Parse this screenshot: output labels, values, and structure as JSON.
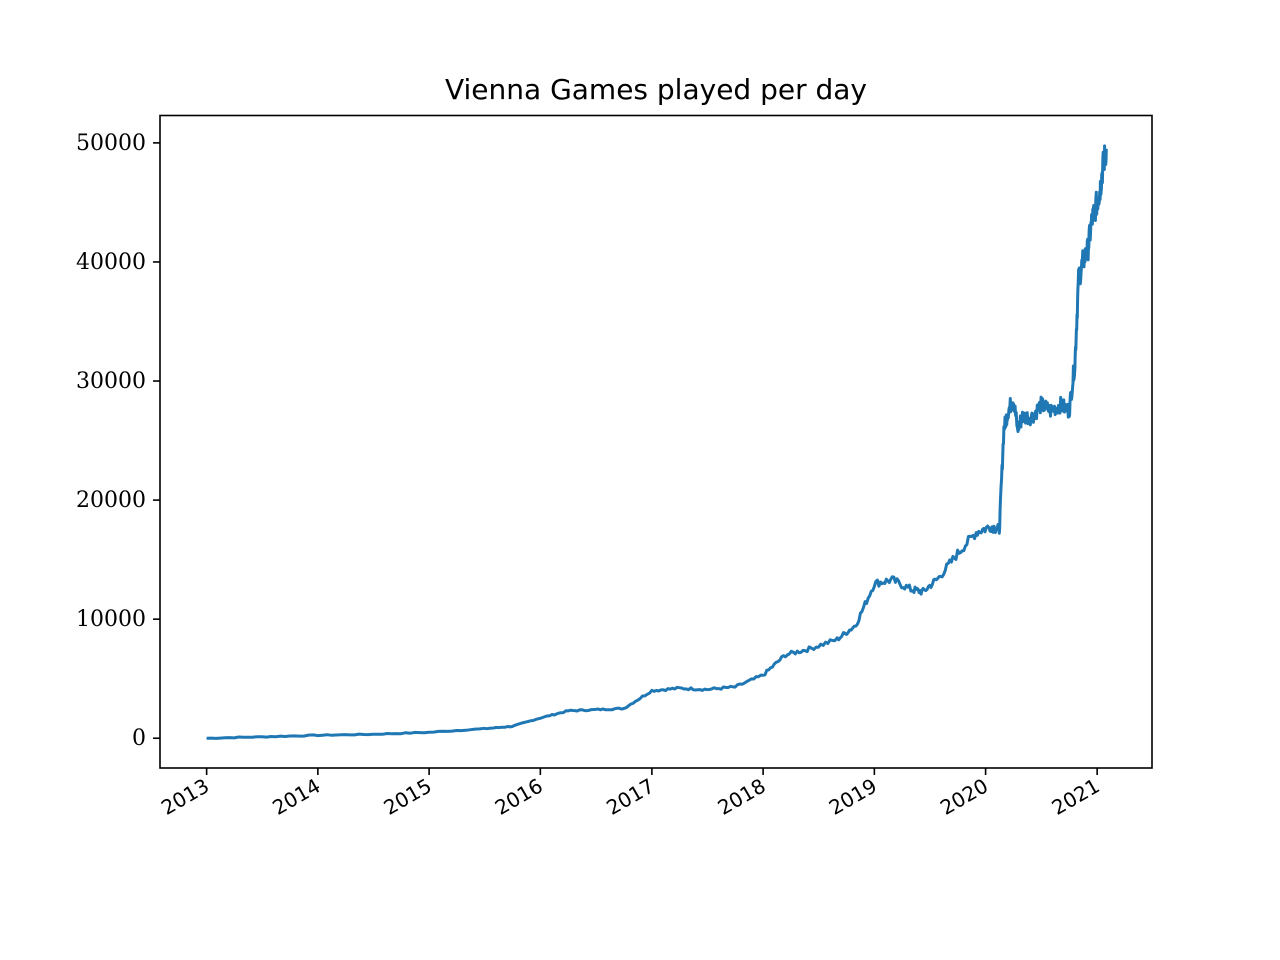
{
  "chart_data": {
    "type": "line",
    "title": "Vienna Games played per day",
    "xlabel": "",
    "ylabel": "",
    "xlim": [
      "2012-08-01",
      "2021-06-30"
    ],
    "ylim": [
      -2500,
      52300
    ],
    "grid": false,
    "legend": "none",
    "color": "#1f77b4",
    "x_ticks": [
      "2013-01-01",
      "2014-01-01",
      "2015-01-01",
      "2016-01-01",
      "2017-01-01",
      "2018-01-01",
      "2019-01-01",
      "2020-01-01",
      "2021-01-01"
    ],
    "x_tick_labels": [
      "2013",
      "2014",
      "2015",
      "2016",
      "2017",
      "2018",
      "2019",
      "2020",
      "2021"
    ],
    "y_ticks": [
      0,
      10000,
      20000,
      30000,
      40000,
      50000
    ],
    "y_tick_labels": [
      "0",
      "10000",
      "20000",
      "30000",
      "40000",
      "50000"
    ],
    "series": [
      {
        "x": [
          "2013-01-01",
          "2013-07-01",
          "2014-01-01",
          "2014-07-01",
          "2015-01-01",
          "2015-07-01",
          "2015-10-01",
          "2016-01-01",
          "2016-04-01",
          "2016-07-01",
          "2016-10-01",
          "2017-01-01",
          "2017-04-01",
          "2017-07-01",
          "2017-10-01",
          "2018-01-01",
          "2018-03-15",
          "2018-06-01",
          "2018-09-01",
          "2018-11-01",
          "2019-01-01",
          "2019-03-01",
          "2019-05-01",
          "2019-06-10",
          "2019-08-01",
          "2019-10-01",
          "2019-12-01",
          "2020-01-20",
          "2020-02-15",
          "2020-03-01",
          "2020-03-15",
          "2020-04-01",
          "2020-04-15",
          "2020-05-01",
          "2020-06-01",
          "2020-07-01",
          "2020-08-01",
          "2020-09-01",
          "2020-10-01",
          "2020-10-20",
          "2020-11-01",
          "2020-11-15",
          "2020-12-01",
          "2020-12-15",
          "2021-01-01",
          "2021-01-10",
          "2021-01-20",
          "2021-01-31"
        ],
        "y": [
          0,
          120,
          250,
          330,
          500,
          800,
          1000,
          1700,
          2300,
          2400,
          2500,
          4000,
          4200,
          4100,
          4300,
          5300,
          7000,
          7500,
          8300,
          9500,
          13000,
          13300,
          12500,
          12300,
          13500,
          15500,
          17300,
          17800,
          17500,
          26000,
          27500,
          28500,
          26000,
          27000,
          27000,
          28000,
          27500,
          28000,
          27500,
          31500,
          38500,
          40000,
          41000,
          43500,
          45000,
          46000,
          48000,
          49500
        ]
      }
    ]
  }
}
